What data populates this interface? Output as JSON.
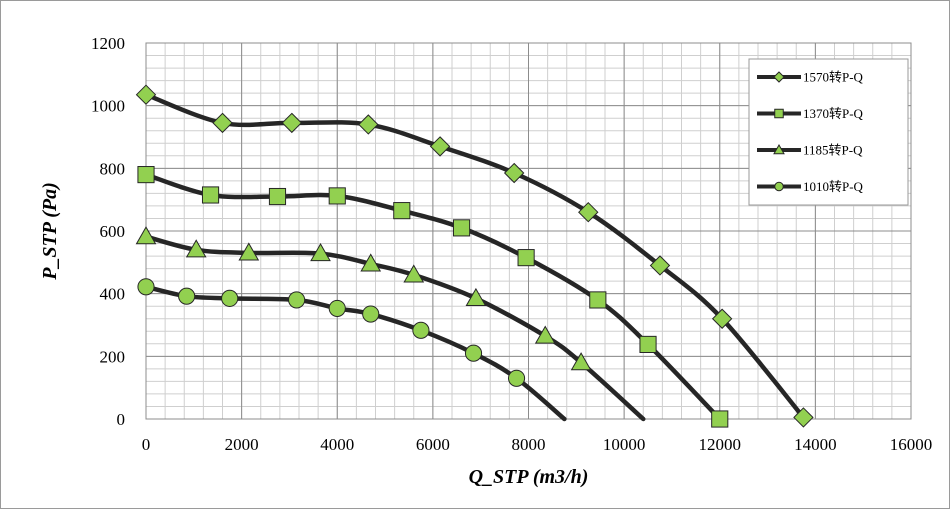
{
  "chart_data": {
    "type": "line",
    "xlabel": "Q_STP (m3/h)",
    "ylabel": "P_STP (Pa)",
    "xlim": [
      0,
      16000
    ],
    "ylim": [
      0,
      1200
    ],
    "x_ticks": [
      "0",
      "2000",
      "4000",
      "6000",
      "8000",
      "10000",
      "12000",
      "14000",
      "16000"
    ],
    "y_ticks": [
      "0",
      "200",
      "400",
      "600",
      "800",
      "1000",
      "1200"
    ],
    "grid": "major and minor",
    "legend_position": "right",
    "line_color": "#262626",
    "marker_color": "#92d050",
    "series": [
      {
        "name": "1570转P-Q",
        "marker": "diamond",
        "points": [
          [
            0,
            1035
          ],
          [
            1600,
            945
          ],
          [
            3050,
            945
          ],
          [
            4650,
            940
          ],
          [
            6150,
            870
          ],
          [
            7700,
            785
          ],
          [
            9250,
            660
          ],
          [
            10750,
            490
          ],
          [
            12050,
            320
          ],
          [
            13750,
            5
          ]
        ],
        "tail": []
      },
      {
        "name": "1370转P-Q",
        "marker": "square",
        "points": [
          [
            0,
            780
          ],
          [
            1350,
            715
          ],
          [
            2750,
            710
          ],
          [
            4000,
            712
          ],
          [
            5350,
            665
          ],
          [
            6600,
            610
          ],
          [
            7950,
            515
          ],
          [
            9450,
            380
          ],
          [
            10500,
            238
          ],
          [
            12000,
            0
          ]
        ],
        "tail": []
      },
      {
        "name": "1185转P-Q",
        "marker": "triangle",
        "points": [
          [
            0,
            582
          ],
          [
            1050,
            540
          ],
          [
            2150,
            530
          ],
          [
            3650,
            528
          ],
          [
            4700,
            495
          ],
          [
            5600,
            460
          ],
          [
            6900,
            385
          ],
          [
            8350,
            265
          ],
          [
            9100,
            180
          ]
        ],
        "tail": [
          [
            10400,
            0
          ]
        ]
      },
      {
        "name": "1010转P-Q",
        "marker": "circle",
        "points": [
          [
            0,
            422
          ],
          [
            850,
            392
          ],
          [
            1750,
            385
          ],
          [
            3150,
            380
          ],
          [
            4000,
            353
          ],
          [
            4700,
            335
          ],
          [
            5750,
            283
          ],
          [
            6850,
            210
          ],
          [
            7750,
            130
          ]
        ],
        "tail": [
          [
            8750,
            0
          ]
        ]
      }
    ]
  }
}
